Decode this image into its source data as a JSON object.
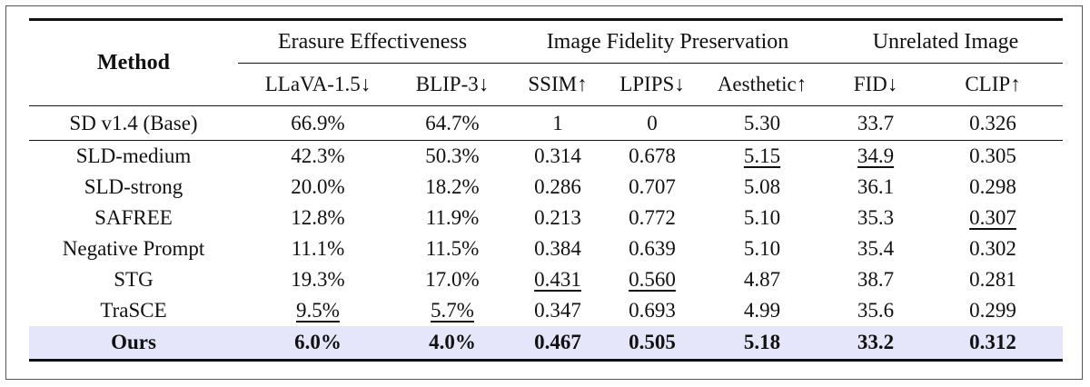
{
  "table": {
    "method_header": "Method",
    "groups": [
      {
        "label": "Erasure Effectiveness",
        "span": 2
      },
      {
        "label": "Image Fidelity Preservation",
        "span": 3
      },
      {
        "label": "Unrelated Image",
        "span": 2
      }
    ],
    "columns": [
      "LLaVA-1.5↓",
      "BLIP-3↓",
      "SSIM↑",
      "LPIPS↓",
      "Aesthetic↑",
      "FID↓",
      "CLIP↑"
    ],
    "base_row": {
      "method": "SD v1.4 (Base)",
      "values": [
        "66.9%",
        "64.7%",
        "1",
        "0",
        "5.30",
        "33.7",
        "0.326"
      ],
      "underline": []
    },
    "rows": [
      {
        "method": "SLD-medium",
        "values": [
          "42.3%",
          "50.3%",
          "0.314",
          "0.678",
          "5.15",
          "34.9",
          "0.305"
        ],
        "underline": [
          4,
          5
        ]
      },
      {
        "method": "SLD-strong",
        "values": [
          "20.0%",
          "18.2%",
          "0.286",
          "0.707",
          "5.08",
          "36.1",
          "0.298"
        ],
        "underline": []
      },
      {
        "method": "SAFREE",
        "values": [
          "12.8%",
          "11.9%",
          "0.213",
          "0.772",
          "5.10",
          "35.3",
          "0.307"
        ],
        "underline": [
          6
        ]
      },
      {
        "method": "Negative Prompt",
        "values": [
          "11.1%",
          "11.5%",
          "0.384",
          "0.639",
          "5.10",
          "35.4",
          "0.302"
        ],
        "underline": []
      },
      {
        "method": "STG",
        "values": [
          "19.3%",
          "17.0%",
          "0.431",
          "0.560",
          "4.87",
          "38.7",
          "0.281"
        ],
        "underline": [
          2,
          3
        ]
      },
      {
        "method": "TraSCE",
        "values": [
          "9.5%",
          "5.7%",
          "0.347",
          "0.693",
          "4.99",
          "35.6",
          "0.299"
        ],
        "underline": [
          0,
          1
        ]
      }
    ],
    "ours_row": {
      "method": "Ours",
      "values": [
        "6.0%",
        "4.0%",
        "0.467",
        "0.505",
        "5.18",
        "33.2",
        "0.312"
      ],
      "highlight_color": "#e6e6fb"
    }
  }
}
